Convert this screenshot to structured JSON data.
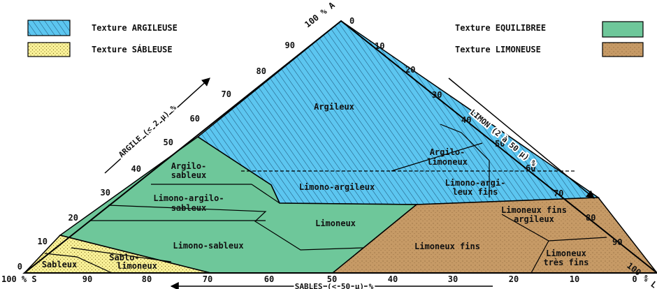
{
  "legend": [
    {
      "label": "Texture ARGILEUSE",
      "color": "#5cc6f0"
    },
    {
      "label": "Texture SÁBLEUSE",
      "color": "#fbf39a"
    },
    {
      "label": "Texture EQUILIBREE",
      "color": "#6ec79a"
    },
    {
      "label": "Texture LIMONEUSE",
      "color": "#c69a66"
    }
  ],
  "axes": {
    "argile": {
      "title": "ARGILE (< 2 µ) %",
      "corner": "100 % A",
      "ticks": [
        "90",
        "80",
        "70",
        "60",
        "50",
        "40",
        "30",
        "20",
        "10",
        "0"
      ]
    },
    "limon": {
      "title": "LIMON (2 à 50 µ) %",
      "corner": "100 % L",
      "ticks": [
        "0",
        "10",
        "20",
        "30",
        "40",
        "50",
        "60",
        "70",
        "80",
        "90"
      ]
    },
    "sables": {
      "title": "SABLES (< 50 µ) %",
      "corner": "100 % S",
      "ticks": [
        "90",
        "80",
        "70",
        "60",
        "50",
        "40",
        "30",
        "20",
        "10",
        "0"
      ]
    }
  },
  "regions": {
    "argileux": "Argileux",
    "argilo_limoneux": [
      "Argilo-",
      "limoneux"
    ],
    "argilo_sableux": [
      "Argilo-",
      "sableux"
    ],
    "limono_argileux": "Limono-argileux",
    "limono_argileux_fins": [
      "Limono-argi-",
      "leux fins"
    ],
    "limono_argilo_sableux": [
      "Limono-argilo-",
      "sableux"
    ],
    "limoneux": "Limoneux",
    "limoneux_fins_argileux": [
      "Limoneux fins",
      "argileux"
    ],
    "limono_sableux": "Limono-sableux",
    "limoneux_fins": "Limoneux fins",
    "limoneux_tres_fins": [
      "Limoneux",
      "très fins"
    ],
    "sableux": "Sableux",
    "sablo_limoneux": [
      "Sablo-",
      "limoneux"
    ]
  }
}
